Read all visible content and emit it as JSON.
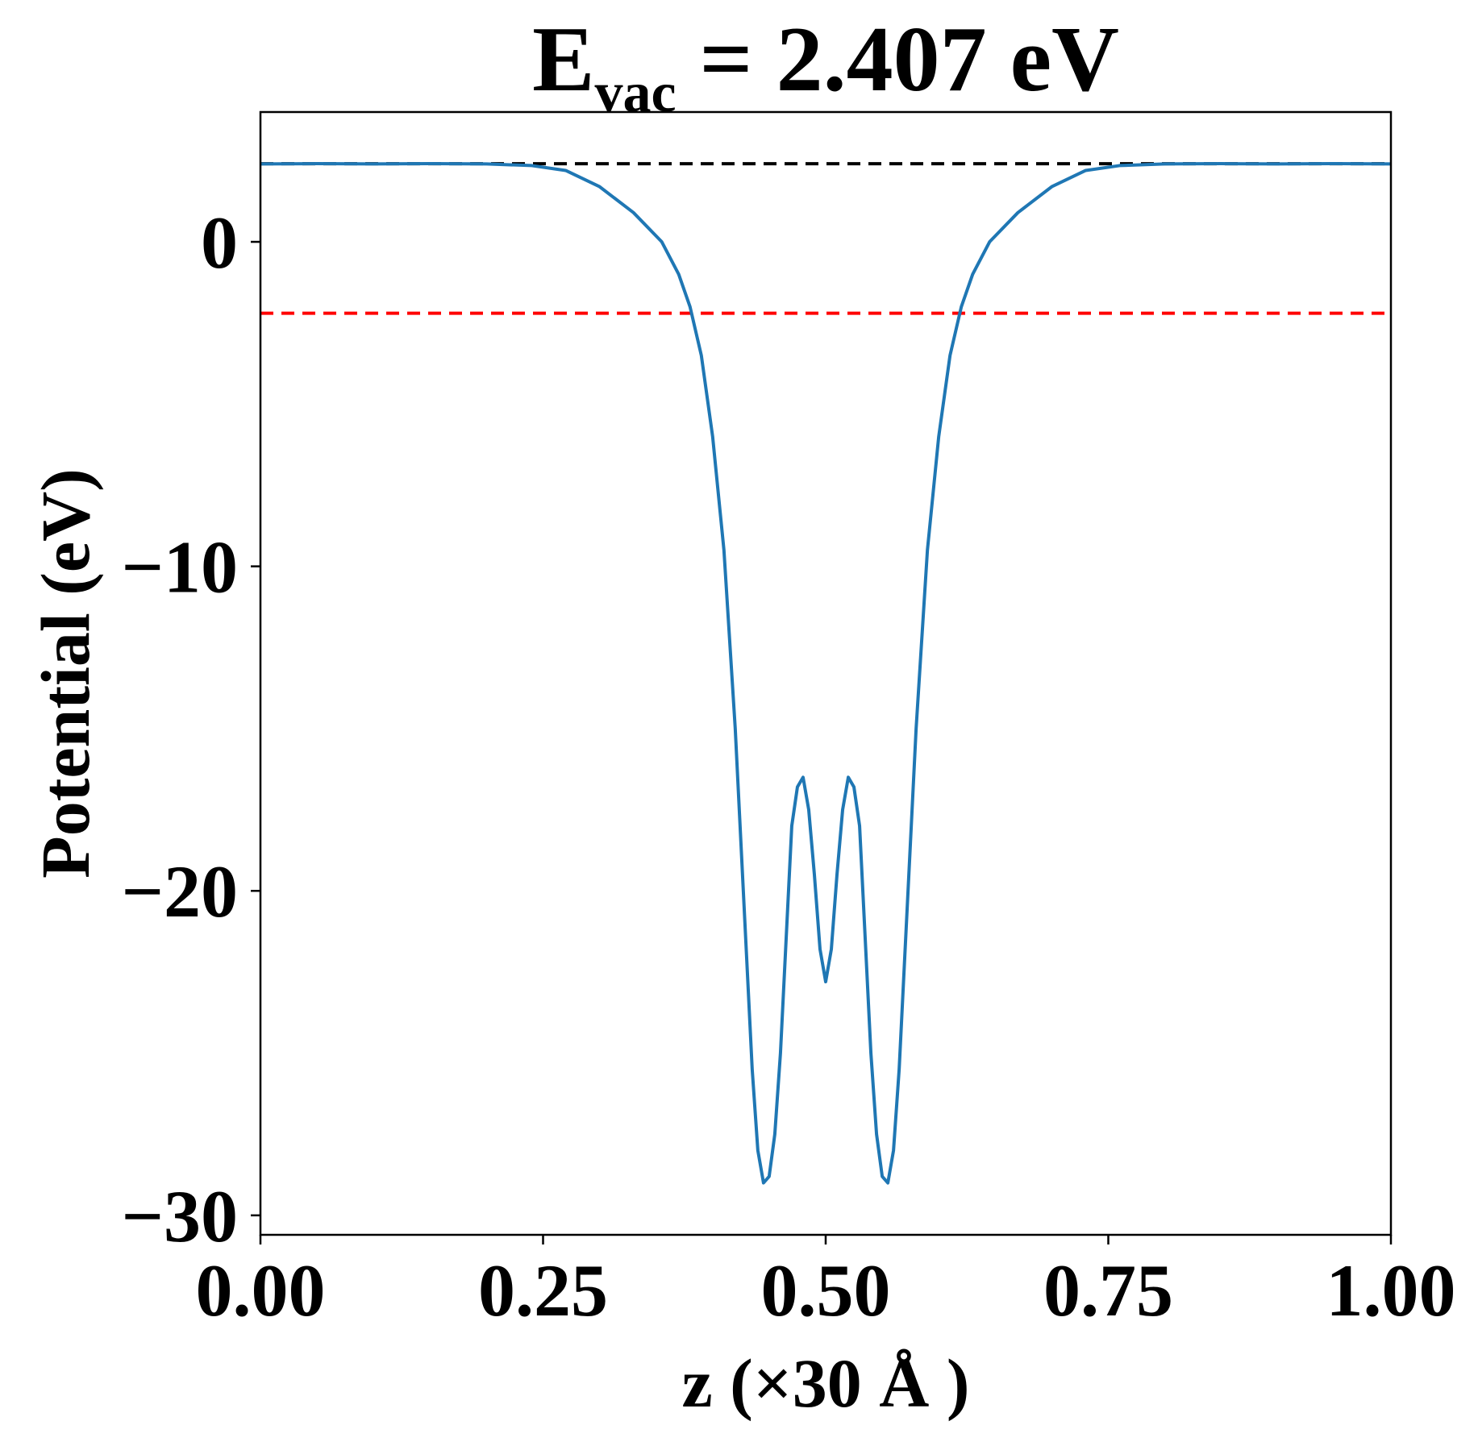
{
  "chart_data": {
    "type": "line",
    "title_main": "E",
    "title_sub": "vac",
    "title_rest": " = 2.407 eV",
    "xlabel": "z (×30 Å )",
    "ylabel": "Potential (eV)",
    "xlim": [
      0,
      1
    ],
    "ylim": [
      -30.6,
      4.0
    ],
    "xticks": [
      0,
      0.25,
      0.5,
      0.75,
      1.0
    ],
    "xtick_labels": [
      "0.00",
      "0.25",
      "0.50",
      "0.75",
      "1.00"
    ],
    "yticks": [
      0,
      -10,
      -20,
      -30
    ],
    "ytick_labels": [
      "0",
      "−10",
      "−20",
      "−30"
    ],
    "grid": false,
    "colors": {
      "series": "#1f77b4",
      "vacuum_level": "#000000",
      "fermi_level": "#ff0000"
    },
    "reference_lines": [
      {
        "y": 2.407,
        "x_start": 0.0,
        "x_end": 1.0,
        "style": "dashed",
        "color": "#000000"
      },
      {
        "y": -2.2,
        "x_start": 0.0,
        "x_end": 1.0,
        "style": "dashed",
        "color": "#ff0000"
      }
    ],
    "series": [
      {
        "x": [
          0.0,
          0.05,
          0.1,
          0.15,
          0.2,
          0.24,
          0.27,
          0.3,
          0.33,
          0.355,
          0.37,
          0.38,
          0.39,
          0.4,
          0.41,
          0.42,
          0.425,
          0.43,
          0.435,
          0.44,
          0.445,
          0.45,
          0.455,
          0.46,
          0.465,
          0.47,
          0.475,
          0.48,
          0.485,
          0.49,
          0.495,
          0.5,
          0.505,
          0.51,
          0.515,
          0.52,
          0.525,
          0.53,
          0.535,
          0.54,
          0.545,
          0.55,
          0.555,
          0.56,
          0.565,
          0.57,
          0.575,
          0.58,
          0.59,
          0.6,
          0.61,
          0.62,
          0.63,
          0.645,
          0.67,
          0.7,
          0.73,
          0.76,
          0.8,
          0.85,
          0.9,
          0.95,
          1.0
        ],
        "y": [
          2.4,
          2.41,
          2.4,
          2.41,
          2.4,
          2.35,
          2.2,
          1.7,
          0.9,
          0.0,
          -1.0,
          -2.0,
          -3.5,
          -6.0,
          -9.5,
          -15.0,
          -18.5,
          -22.0,
          -25.5,
          -28.0,
          -29.0,
          -28.8,
          -27.5,
          -25.0,
          -21.5,
          -18.0,
          -16.8,
          -16.5,
          -17.5,
          -19.5,
          -21.8,
          -22.8,
          -21.8,
          -19.5,
          -17.5,
          -16.5,
          -16.8,
          -18.0,
          -21.5,
          -25.0,
          -27.5,
          -28.8,
          -29.0,
          -28.0,
          -25.5,
          -22.0,
          -18.5,
          -15.0,
          -9.5,
          -6.0,
          -3.5,
          -2.0,
          -1.0,
          0.0,
          0.9,
          1.7,
          2.2,
          2.35,
          2.4,
          2.41,
          2.4,
          2.41,
          2.4
        ]
      }
    ]
  }
}
